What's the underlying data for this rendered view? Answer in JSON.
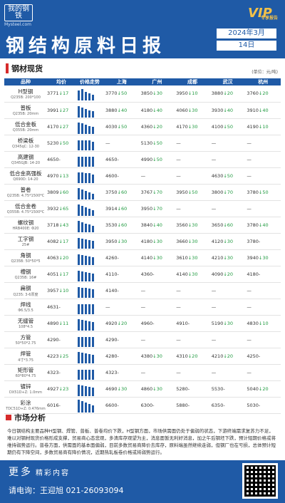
{
  "header": {
    "logo_cn": "我的钢铁",
    "logo_en": "Mysteel.com",
    "vip_text": "VIP",
    "vip_sub": "专享报告",
    "title": "钢结构原料日报",
    "date_year": "2024年3月",
    "date_day": "14日"
  },
  "section1": {
    "title": "钢材现货",
    "unit": "(单位：元/吨)"
  },
  "table": {
    "headers": [
      "品种",
      "均价",
      "价格走势",
      "上海",
      "广州",
      "成都",
      "武汉",
      "杭州"
    ],
    "rows": [
      {
        "name": "H型钢",
        "spec": "Q235B: 200*100",
        "avg": "3771",
        "avg_d": "↓17",
        "sh": "3770",
        "sh_d": "↓50",
        "gz": "3850",
        "gz_d": "↓30",
        "cd": "3950",
        "cd_d": "↓10",
        "wh": "3880",
        "wh_d": "↓20",
        "hz": "3760",
        "hz_d": "↓20",
        "bars": [
          14,
          16,
          12,
          10,
          8
        ]
      },
      {
        "name": "普板",
        "spec": "Q235B: 20mm",
        "avg": "3991",
        "avg_d": "↓27",
        "sh": "3880",
        "sh_d": "↓40",
        "gz": "4180",
        "gz_d": "↓40",
        "cd": "4060",
        "cd_d": "↓30",
        "wh": "3930",
        "wh_d": "↓40",
        "hz": "3910",
        "hz_d": "↓40",
        "bars": [
          16,
          14,
          12,
          10,
          9
        ]
      },
      {
        "name": "低合金板",
        "spec": "Q355B: 20mm",
        "avg": "4170",
        "avg_d": "↓27",
        "sh": "4030",
        "sh_d": "↓50",
        "gz": "4360",
        "gz_d": "↓20",
        "cd": "4170",
        "cd_d": "↓30",
        "wh": "4100",
        "wh_d": "↓50",
        "hz": "4190",
        "hz_d": "↓10",
        "bars": [
          16,
          15,
          13,
          11,
          10
        ]
      },
      {
        "name": "桥梁板",
        "spec": "Q345qC: 12-30",
        "avg": "5230",
        "avg_d": "↓50",
        "sh": "—",
        "sh_d": "",
        "gz": "5130",
        "gz_d": "↓50",
        "cd": "—",
        "cd_d": "",
        "wh": "—",
        "wh_d": "",
        "hz": "—",
        "hz_d": "",
        "bars": [
          14,
          14,
          14,
          14,
          12
        ]
      },
      {
        "name": "高建钢",
        "spec": "Q345GJB: 14-20",
        "avg": "4650",
        "avg_d": "-",
        "sh": "4650",
        "sh_d": "-",
        "gz": "4990",
        "gz_d": "↓50",
        "cd": "—",
        "cd_d": "",
        "wh": "—",
        "wh_d": "",
        "hz": "—",
        "hz_d": "",
        "bars": [
          14,
          14,
          14,
          14,
          14
        ]
      },
      {
        "name": "低合金高强板",
        "spec": "Q690D: 14-20",
        "avg": "4970",
        "avg_d": "↓13",
        "sh": "4600",
        "sh_d": "-",
        "gz": "—",
        "gz_d": "",
        "cd": "—",
        "cd_d": "",
        "wh": "4630",
        "wh_d": "↓50",
        "hz": "—",
        "hz_d": "",
        "bars": [
          15,
          15,
          14,
          14,
          12
        ]
      },
      {
        "name": "普卷",
        "spec": "Q235B: 4.75*1500*C",
        "avg": "3809",
        "avg_d": "↓60",
        "sh": "3750",
        "sh_d": "↓60",
        "gz": "3767",
        "gz_d": "↓70",
        "cd": "3950",
        "cd_d": "↓50",
        "wh": "3800",
        "wh_d": "↓70",
        "hz": "3780",
        "hz_d": "↓50",
        "bars": [
          16,
          14,
          12,
          10,
          8
        ]
      },
      {
        "name": "低合金卷",
        "spec": "Q355B: 4.75*1500*C",
        "avg": "3932",
        "avg_d": "↓65",
        "sh": "3914",
        "sh_d": "↓60",
        "gz": "3950",
        "gz_d": "↓70",
        "cd": "—",
        "cd_d": "",
        "wh": "—",
        "wh_d": "",
        "hz": "—",
        "hz_d": "",
        "bars": [
          16,
          14,
          12,
          10,
          8
        ]
      },
      {
        "name": "螺纹钢",
        "spec": "HRB400E: Φ20",
        "avg": "3718",
        "avg_d": "↓43",
        "sh": "3530",
        "sh_d": "↓60",
        "gz": "3840",
        "gz_d": "↓40",
        "cd": "3560",
        "cd_d": "↓30",
        "wh": "3650",
        "wh_d": "↓60",
        "hz": "3780",
        "hz_d": "↓40",
        "bars": [
          16,
          14,
          12,
          11,
          9
        ]
      },
      {
        "name": "工字钢",
        "spec": "25#",
        "avg": "4082",
        "avg_d": "↓17",
        "sh": "3950",
        "sh_d": "↓30",
        "gz": "4180",
        "gz_d": "↓30",
        "cd": "3660",
        "cd_d": "↓30",
        "wh": "4120",
        "wh_d": "↓30",
        "hz": "3780",
        "hz_d": "-",
        "bars": [
          15,
          14,
          13,
          12,
          11
        ]
      },
      {
        "name": "角钢",
        "spec": "Q235B: 50*50*5",
        "avg": "4063",
        "avg_d": "↓20",
        "sh": "4260",
        "sh_d": "-",
        "gz": "4140",
        "gz_d": "↓30",
        "cd": "3610",
        "cd_d": "↓30",
        "wh": "4210",
        "wh_d": "↓30",
        "hz": "3940",
        "hz_d": "↓30",
        "bars": [
          15,
          14,
          13,
          12,
          11
        ]
      },
      {
        "name": "槽钢",
        "spec": "Q235B: 16#",
        "avg": "4051",
        "avg_d": "↓17",
        "sh": "4110",
        "sh_d": "-",
        "gz": "4360",
        "gz_d": "-",
        "cd": "4140",
        "cd_d": "↓30",
        "wh": "4090",
        "wh_d": "↓20",
        "hz": "4180",
        "hz_d": "-",
        "bars": [
          15,
          14,
          13,
          12,
          11
        ]
      },
      {
        "name": "扁钢",
        "spec": "Q235: 3-6厚度",
        "avg": "3957",
        "avg_d": "↓10",
        "sh": "4140",
        "sh_d": "-",
        "gz": "—",
        "gz_d": "",
        "cd": "—",
        "cd_d": "",
        "wh": "—",
        "wh_d": "",
        "hz": "—",
        "hz_d": "",
        "bars": [
          15,
          14,
          14,
          13,
          12
        ]
      },
      {
        "name": "焊线",
        "spec": "Φ6.5/3.5",
        "avg": "4631",
        "avg_d": "-",
        "sh": "—",
        "sh_d": "",
        "gz": "—",
        "gz_d": "",
        "cd": "—",
        "cd_d": "",
        "wh": "—",
        "wh_d": "",
        "hz": "—",
        "hz_d": "",
        "bars": [
          14,
          14,
          14,
          14,
          14
        ]
      },
      {
        "name": "无缝管",
        "spec": "108*4.5",
        "avg": "4890",
        "avg_d": "↓11",
        "sh": "4920",
        "sh_d": "↓20",
        "gz": "4960",
        "gz_d": "-",
        "cd": "4910",
        "cd_d": "-",
        "wh": "5190",
        "wh_d": "↓30",
        "hz": "4830",
        "hz_d": "↓10",
        "bars": [
          16,
          15,
          14,
          13,
          12
        ]
      },
      {
        "name": "方管",
        "spec": "50*50*2.75",
        "avg": "4290",
        "avg_d": "-",
        "sh": "4290",
        "sh_d": "-",
        "gz": "—",
        "gz_d": "",
        "cd": "—",
        "cd_d": "",
        "wh": "—",
        "wh_d": "",
        "hz": "—",
        "hz_d": "",
        "bars": [
          14,
          14,
          14,
          14,
          14
        ]
      },
      {
        "name": "焊管",
        "spec": "4寸*3.75",
        "avg": "4223",
        "avg_d": "↓25",
        "sh": "4280",
        "sh_d": "-",
        "gz": "4380",
        "gz_d": "↓30",
        "cd": "4310",
        "cd_d": "↓20",
        "wh": "4210",
        "wh_d": "↓20",
        "hz": "4250",
        "hz_d": "-",
        "bars": [
          16,
          15,
          14,
          13,
          12
        ]
      },
      {
        "name": "矩形管",
        "spec": "60*80*4.75",
        "avg": "4323",
        "avg_d": "-",
        "sh": "4323",
        "sh_d": "-",
        "gz": "—",
        "gz_d": "",
        "cd": "—",
        "cd_d": "",
        "wh": "—",
        "wh_d": "",
        "hz": "—",
        "hz_d": "",
        "bars": [
          14,
          14,
          14,
          14,
          14
        ]
      },
      {
        "name": "镀锌",
        "spec": "DX51D+Z: 1.0mm",
        "avg": "4927",
        "avg_d": "↓23",
        "sh": "4690",
        "sh_d": "↓30",
        "gz": "4860",
        "gz_d": "↓30",
        "cd": "5280",
        "cd_d": "-",
        "wh": "5530",
        "wh_d": "-",
        "hz": "5040",
        "hz_d": "↓20",
        "bars": [
          16,
          15,
          14,
          13,
          12
        ]
      },
      {
        "name": "彩涂",
        "spec": "TDC51D+Z: 0.476mm",
        "avg": "6016",
        "avg_d": "-",
        "sh": "6600",
        "sh_d": "-",
        "gz": "6300",
        "gz_d": "-",
        "cd": "5880",
        "cd_d": "-",
        "wh": "6350",
        "wh_d": "-",
        "hz": "5030",
        "hz_d": "-",
        "bars": [
          18,
          16,
          14,
          12,
          10
        ]
      }
    ]
  },
  "section2": {
    "title": "市场分析",
    "text": "今日钢结构主要品种H型钢、焊管、普板、普卷均价下跌，H型钢方面，市场供需面仍处于偏弱的状态，下游终端需求复苏力不足，难以对钢材现货价格形成支撑，贸易商心态悲观，多清库存观望为主，消息面暂无利好消息，加之午后钢坯下跌，预计短期价格或将维持弱势运行。普卷方面，供需面的基本面偏弱，目前多数贸易商降价去库存，原料端虽然继续走弱，但钢厂也在亏损，总体预计短期仍有下降空间，多数贸易商有降价情况，近期热轧板卷价格或将弱势运行。"
  },
  "footer": {
    "more": "更多",
    "more_sub": "精彩内容",
    "contact": "请电询：王迎旭  021-26093094"
  }
}
